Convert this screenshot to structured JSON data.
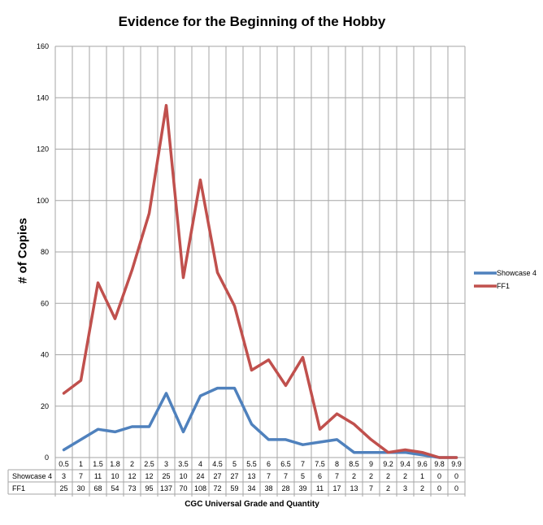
{
  "chart_data": {
    "type": "line",
    "title": "Evidence for the Beginning of the Hobby",
    "xlabel": "CGC Universal  Grade and Quantity",
    "ylabel": "# of Copies",
    "ylim": [
      0,
      160
    ],
    "yticks": [
      0,
      20,
      40,
      60,
      80,
      100,
      120,
      140,
      160
    ],
    "grid": true,
    "legend_position": "right",
    "categories": [
      "0.5",
      "1",
      "1.5",
      "1.8",
      "2",
      "2.5",
      "3",
      "3.5",
      "4",
      "4.5",
      "5",
      "5.5",
      "6",
      "6.5",
      "7",
      "7.5",
      "8",
      "8.5",
      "9",
      "9.2",
      "9.4",
      "9.6",
      "9.8",
      "9.9"
    ],
    "series": [
      {
        "name": "Showcase 4",
        "color": "#4f81bd",
        "values": [
          3,
          7,
          11,
          10,
          12,
          12,
          25,
          10,
          24,
          27,
          27,
          13,
          7,
          7,
          5,
          6,
          7,
          2,
          2,
          2,
          2,
          1,
          0,
          0
        ]
      },
      {
        "name": "FF1",
        "color": "#c0504d",
        "values": [
          25,
          30,
          68,
          54,
          73,
          95,
          137,
          70,
          108,
          72,
          59,
          34,
          38,
          28,
          39,
          11,
          17,
          13,
          7,
          2,
          3,
          2,
          0,
          0
        ]
      }
    ]
  }
}
